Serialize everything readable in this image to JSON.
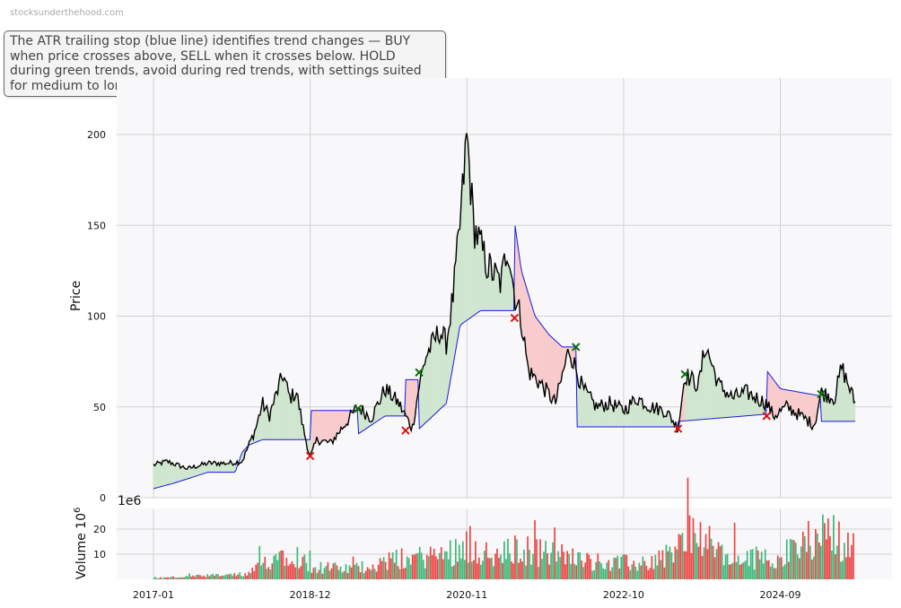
{
  "watermark": "stocksunderthehood.com",
  "description": "The ATR trailing stop (blue line) identifies trend changes — BUY when price crosses above, SELL when it crosses below. HOLD during green trends, avoid during red trends, with settings suited for medium to long-term investors.",
  "colors": {
    "price": "#000000",
    "stop": "#1a1adf",
    "bull_fill": "#cfe6cf",
    "bear_fill": "#f8cccc",
    "buy": "#0a6e0a",
    "sell": "#dd1111",
    "vol_up": "#3cb878",
    "vol_down": "#ee4444"
  },
  "chart_data": [
    {
      "type": "line",
      "ylabel": "Price",
      "ylim": [
        0,
        220
      ],
      "y_ticks": [
        0,
        50,
        100,
        150,
        200
      ],
      "x_ticks": [
        "2017-01",
        "2018-12",
        "2020-11",
        "2022-10",
        "2024-09"
      ],
      "grid": true,
      "series": [
        {
          "name": "price",
          "points": [
            [
              "2017-01",
              18
            ],
            [
              "2017-03",
              20
            ],
            [
              "2017-06",
              16
            ],
            [
              "2017-09",
              19
            ],
            [
              "2017-12",
              19
            ],
            [
              "2018-02",
              20
            ],
            [
              "2018-04",
              38
            ],
            [
              "2018-05",
              52
            ],
            [
              "2018-06",
              45
            ],
            [
              "2018-08",
              68
            ],
            [
              "2018-09",
              55
            ],
            [
              "2018-10",
              58
            ],
            [
              "2018-11",
              38
            ],
            [
              "2018-12",
              22
            ],
            [
              "2019-01",
              32
            ],
            [
              "2019-03",
              30
            ],
            [
              "2019-05",
              40
            ],
            [
              "2019-07",
              50
            ],
            [
              "2019-09",
              44
            ],
            [
              "2019-11",
              60
            ],
            [
              "2020-01",
              52
            ],
            [
              "2020-03",
              38
            ],
            [
              "2020-04",
              62
            ],
            [
              "2020-05",
              78
            ],
            [
              "2020-07",
              92
            ],
            [
              "2020-08",
              85
            ],
            [
              "2020-09",
              112
            ],
            [
              "2020-10",
              150
            ],
            [
              "2020-11",
              200
            ],
            [
              "2020-12",
              150
            ],
            [
              "2021-02",
              128
            ],
            [
              "2021-04",
              118
            ],
            [
              "2021-05",
              140
            ],
            [
              "2021-06",
              112
            ],
            [
              "2021-07",
              98
            ],
            [
              "2021-08",
              70
            ],
            [
              "2021-10",
              62
            ],
            [
              "2021-12",
              52
            ],
            [
              "2022-02",
              82
            ],
            [
              "2022-04",
              60
            ],
            [
              "2022-06",
              50
            ],
            [
              "2022-08",
              52
            ],
            [
              "2022-10",
              48
            ],
            [
              "2022-12",
              55
            ],
            [
              "2023-02",
              50
            ],
            [
              "2023-04",
              48
            ],
            [
              "2023-05",
              44
            ],
            [
              "2023-06",
              38
            ],
            [
              "2023-07",
              68
            ],
            [
              "2023-09",
              62
            ],
            [
              "2023-10",
              84
            ],
            [
              "2023-12",
              62
            ],
            [
              "2024-02",
              55
            ],
            [
              "2024-04",
              58
            ],
            [
              "2024-07",
              52
            ],
            [
              "2024-08",
              45
            ],
            [
              "2024-10",
              50
            ],
            [
              "2024-12",
              45
            ],
            [
              "2025-02",
              40
            ],
            [
              "2025-03",
              58
            ],
            [
              "2025-05",
              55
            ],
            [
              "2025-06",
              72
            ],
            [
              "2025-08",
              52
            ]
          ]
        },
        {
          "name": "ATR trailing stop",
          "points": [
            [
              "2017-01",
              5
            ],
            [
              "2017-04",
              8
            ],
            [
              "2017-09",
              14
            ],
            [
              "2018-01",
              14
            ],
            [
              "2018-02",
              25
            ],
            [
              "2018-03",
              29
            ],
            [
              "2018-05",
              32
            ],
            [
              "2018-12",
              32
            ],
            [
              "2018-12",
              48
            ],
            [
              "2019-07",
              48
            ],
            [
              "2019-07",
              35
            ],
            [
              "2019-11",
              45
            ],
            [
              "2020-02",
              45
            ],
            [
              "2020-02",
              65
            ],
            [
              "2020-04",
              65
            ],
            [
              "2020-04",
              38
            ],
            [
              "2020-08",
              52
            ],
            [
              "2020-10",
              95
            ],
            [
              "2021-01",
              103
            ],
            [
              "2021-06",
              103
            ],
            [
              "2021-06",
              152
            ],
            [
              "2021-07",
              125
            ],
            [
              "2021-09",
              100
            ],
            [
              "2021-11",
              90
            ],
            [
              "2022-01",
              83
            ],
            [
              "2022-03",
              83
            ],
            [
              "2022-03",
              39
            ],
            [
              "2023-06",
              39
            ],
            [
              "2023-06",
              42
            ],
            [
              "2024-07",
              46
            ],
            [
              "2024-07",
              70
            ],
            [
              "2024-09",
              60
            ],
            [
              "2025-03",
              56
            ],
            [
              "2025-03",
              42
            ],
            [
              "2025-08",
              42
            ]
          ]
        }
      ],
      "signals": [
        {
          "type": "SELL",
          "date": "2018-12",
          "price": 23
        },
        {
          "type": "BUY",
          "date": "2019-07",
          "price": 49
        },
        {
          "type": "SELL",
          "date": "2020-02",
          "price": 37
        },
        {
          "type": "BUY",
          "date": "2020-04",
          "price": 69
        },
        {
          "type": "SELL",
          "date": "2021-06",
          "price": 99
        },
        {
          "type": "BUY",
          "date": "2022-03",
          "price": 83
        },
        {
          "type": "SELL",
          "date": "2023-06",
          "price": 38
        },
        {
          "type": "BUY",
          "date": "2023-07",
          "price": 68
        },
        {
          "type": "SELL",
          "date": "2024-07",
          "price": 45
        },
        {
          "type": "BUY",
          "date": "2025-03",
          "price": 57
        }
      ]
    },
    {
      "type": "bar",
      "ylabel": "Volume  10",
      "ylabel_exp": "6",
      "scale_label": "1e6",
      "y_ticks": [
        10,
        20
      ],
      "ylim": [
        0,
        26
      ],
      "grid": true,
      "volume_profile": [
        [
          "2017-01",
          0.5
        ],
        [
          "2018-03",
          2
        ],
        [
          "2018-06",
          8
        ],
        [
          "2018-09",
          12
        ],
        [
          "2018-12",
          5
        ],
        [
          "2019-06",
          4
        ],
        [
          "2020-01",
          8
        ],
        [
          "2020-08",
          10
        ],
        [
          "2020-11",
          14
        ],
        [
          "2021-03",
          8
        ],
        [
          "2021-06",
          12
        ],
        [
          "2021-12",
          10
        ],
        [
          "2022-06",
          7
        ],
        [
          "2023-01",
          6
        ],
        [
          "2023-06",
          12
        ],
        [
          "2023-08",
          20
        ],
        [
          "2024-01",
          8
        ],
        [
          "2024-09",
          9
        ],
        [
          "2025-01",
          15
        ],
        [
          "2025-03",
          20
        ],
        [
          "2025-08",
          12
        ]
      ]
    }
  ]
}
